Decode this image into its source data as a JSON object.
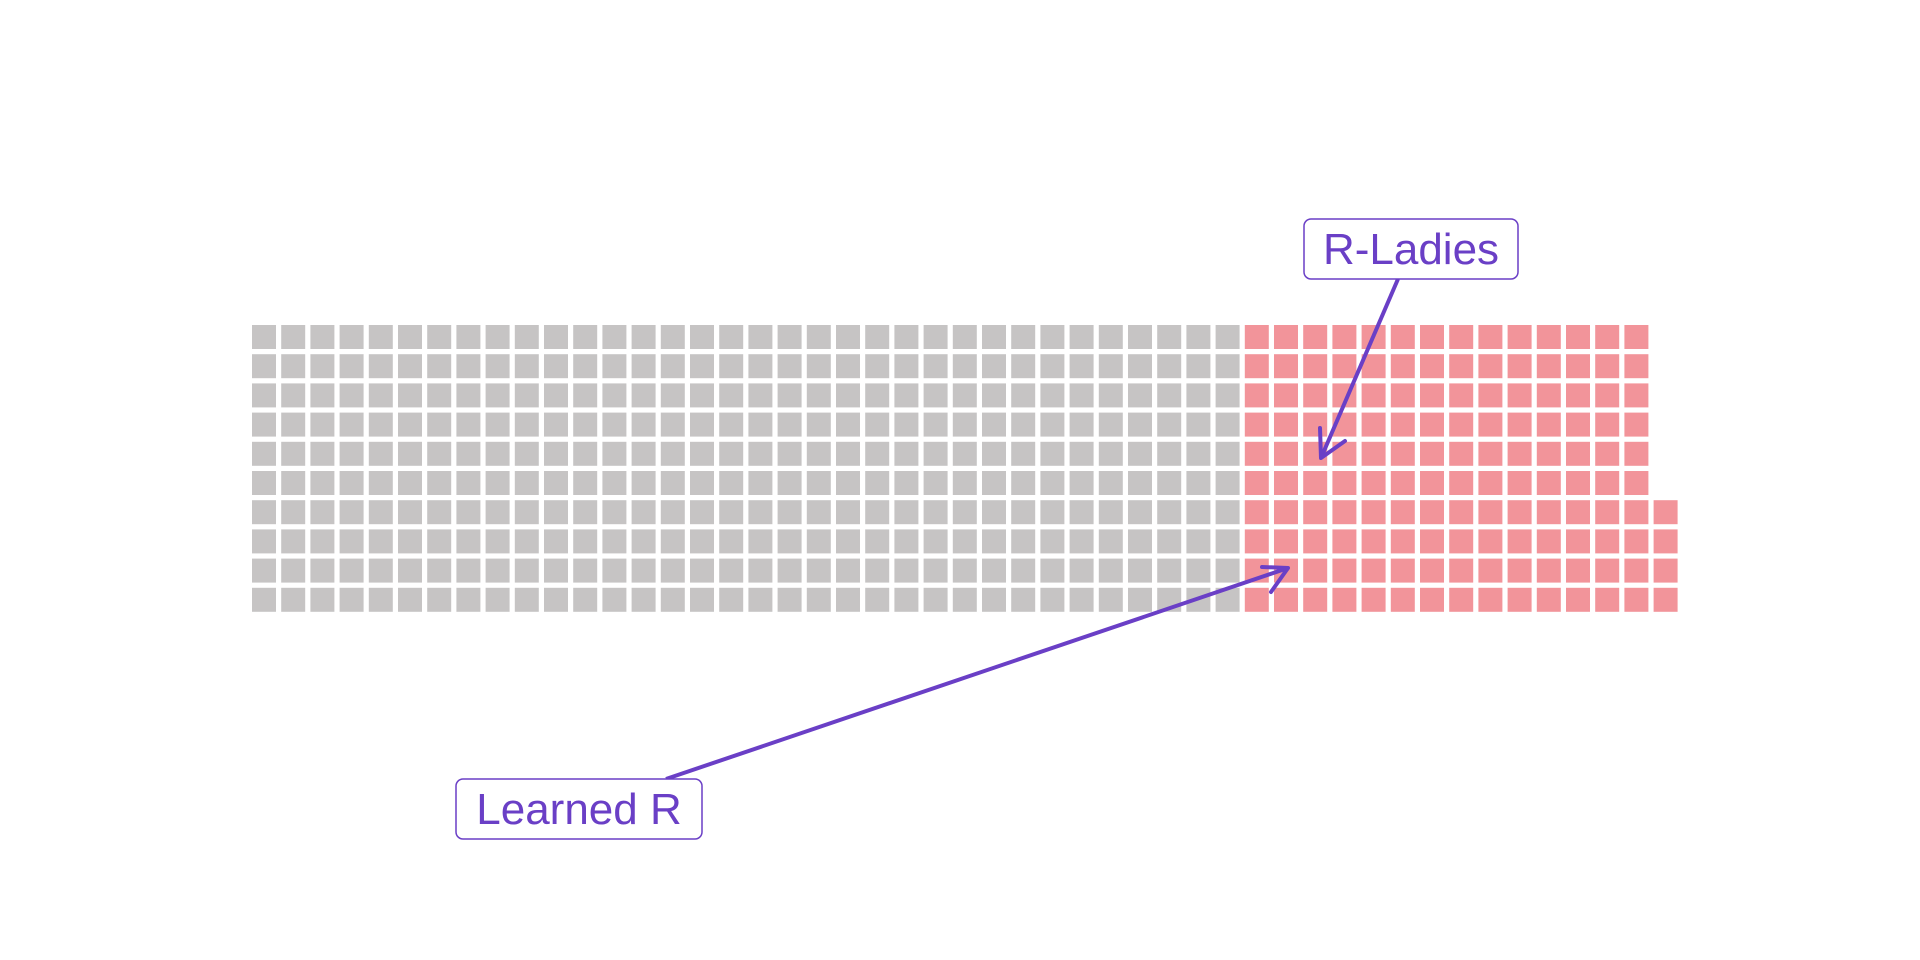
{
  "chart_data": {
    "type": "waffle",
    "title": "",
    "xlabel": "",
    "ylabel": "",
    "grid_rows": 10,
    "segments": [
      {
        "category": "",
        "count": 340,
        "color": "#c6c4c4"
      },
      {
        "category": "",
        "count": 144,
        "color": "#f2949a"
      }
    ],
    "annotations": [
      {
        "label": "R-Ladies",
        "points_to_segment": 1
      },
      {
        "label": "Learned R",
        "points_to_segment": 1
      }
    ],
    "annotation_color": "#6a3fc6",
    "legend": "none",
    "grid": false
  }
}
